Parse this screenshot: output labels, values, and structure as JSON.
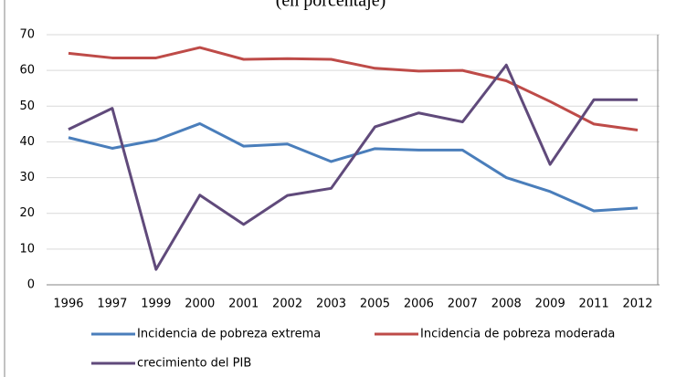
{
  "chart_data": {
    "type": "line",
    "title": "(en porcentaje)",
    "categories": [
      "1996",
      "1997",
      "1999",
      "2000",
      "2001",
      "2002",
      "2003",
      "2005",
      "2006",
      "2007",
      "2008",
      "2009",
      "2011",
      "2012"
    ],
    "series": [
      {
        "name": "Incidencia de pobreza extrema",
        "color": "#4a7ebb",
        "values": [
          41.2,
          38.2,
          40.5,
          45.1,
          38.8,
          39.4,
          34.5,
          38.1,
          37.7,
          37.7,
          30.0,
          26.1,
          20.7,
          21.5
        ]
      },
      {
        "name": "Incidencia de pobreza moderada",
        "color": "#be4b48",
        "values": [
          64.8,
          63.5,
          63.5,
          66.4,
          63.1,
          63.3,
          63.1,
          60.6,
          59.8,
          60.0,
          57.1,
          51.3,
          45.0,
          43.3
        ]
      },
      {
        "name": "crecimiento del PIB",
        "color": "#604a7b",
        "values": [
          43.5,
          49.4,
          4.3,
          25.1,
          16.9,
          25.0,
          27.0,
          44.2,
          48.1,
          45.6,
          61.5,
          33.7,
          51.8,
          51.8
        ]
      }
    ],
    "ylim": [
      0,
      70
    ],
    "yticks": [
      0,
      10,
      20,
      30,
      40,
      50,
      60,
      70
    ],
    "grid": true
  }
}
